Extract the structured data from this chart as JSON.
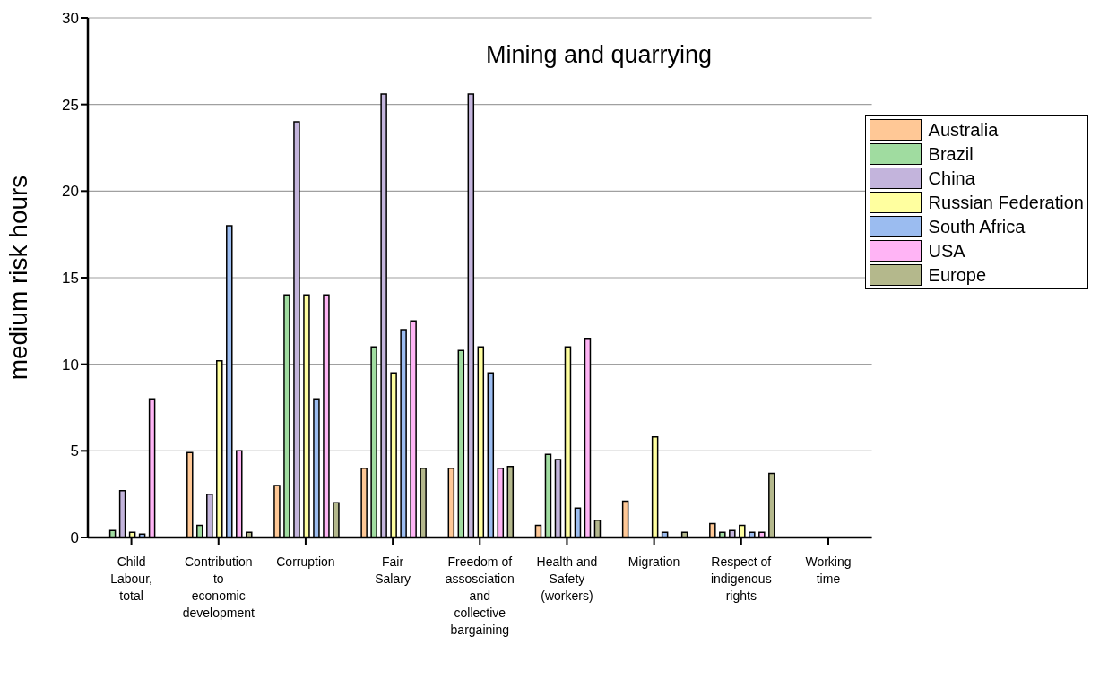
{
  "chart_data": {
    "type": "bar",
    "title": "Mining and quarrying",
    "ylabel": "medium risk hours",
    "categories": [
      "Child Labour, total",
      "Contribution to economic development",
      "Corruption",
      "Fair Salary",
      "Freedom of assosciation and collective bargaining",
      "Health and Safety (workers)",
      "Migration",
      "Respect of indigenous rights",
      "Working time"
    ],
    "series": [
      {
        "name": "Australia",
        "color": "#ffc896",
        "values": [
          0,
          4.9,
          3,
          4,
          4,
          0.7,
          2.1,
          0.8,
          0
        ]
      },
      {
        "name": "Brazil",
        "color": "#a0dca0",
        "values": [
          0.4,
          0.7,
          14,
          11,
          10.8,
          4.8,
          0,
          0.3,
          0
        ]
      },
      {
        "name": "China",
        "color": "#c3b4dc",
        "values": [
          2.7,
          2.5,
          24,
          25.6,
          25.6,
          4.5,
          0,
          0.4,
          0
        ]
      },
      {
        "name": "Russian Federation",
        "color": "#ffff9f",
        "values": [
          0.3,
          10.2,
          14,
          9.5,
          11,
          11,
          5.8,
          0.7,
          0
        ]
      },
      {
        "name": "South Africa",
        "color": "#9bbcf0",
        "values": [
          0.2,
          18,
          8,
          12,
          9.5,
          1.7,
          0.3,
          0.3,
          0
        ]
      },
      {
        "name": "USA",
        "color": "#ffb4f5",
        "values": [
          8,
          5,
          14,
          12.5,
          4,
          11.5,
          0,
          0.3,
          0
        ]
      },
      {
        "name": "Europe",
        "color": "#b4b88c",
        "values": [
          0,
          0.3,
          2,
          4,
          4.1,
          1,
          0.3,
          3.7,
          0
        ]
      }
    ],
    "ylim": [
      0,
      30
    ],
    "yticks": [
      0,
      5,
      10,
      15,
      20,
      25,
      30
    ],
    "grid": "y",
    "legend": "top right"
  }
}
